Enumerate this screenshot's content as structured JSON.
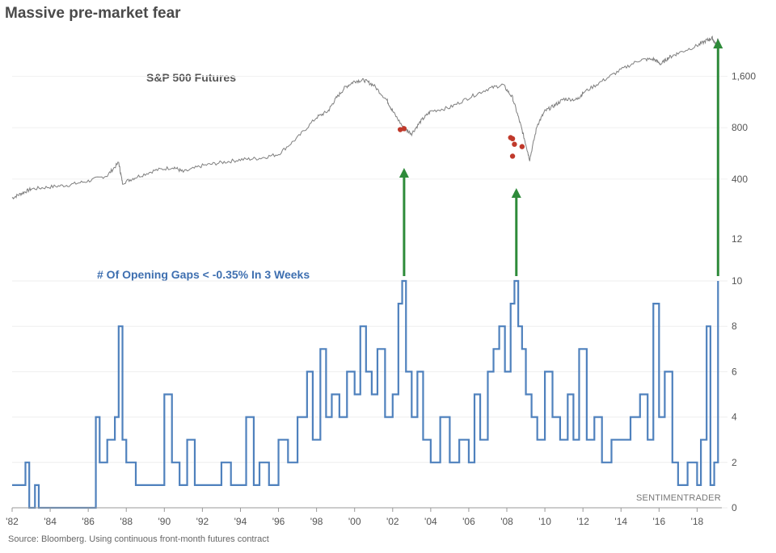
{
  "title": "Massive pre-market fear",
  "source": "Source:  Bloomberg.  Using continuous front-month futures contract",
  "watermark": "SENTIMENTRADER",
  "chart_data": [
    {
      "type": "line",
      "name": "S&P 500 Futures",
      "label": "S&P 500 Futures",
      "color": "#7f7f7f",
      "scale": "log",
      "yticks": [
        400,
        800,
        1600
      ],
      "ytick_labels": [
        "400",
        "800",
        "1,600"
      ],
      "x": [
        1982.0,
        1982.5,
        1983.0,
        1984.0,
        1985.0,
        1986.0,
        1987.0,
        1987.6,
        1987.8,
        1988.5,
        1989.5,
        1990.5,
        1991.0,
        1992.0,
        1993.0,
        1994.0,
        1995.0,
        1996.0,
        1997.0,
        1998.0,
        1998.6,
        1999.0,
        1999.5,
        2000.0,
        2000.5,
        2001.0,
        2001.7,
        2002.0,
        2002.6,
        2003.0,
        2003.5,
        2004.0,
        2005.0,
        2006.0,
        2007.0,
        2007.8,
        2008.3,
        2008.7,
        2009.0,
        2009.2,
        2009.6,
        2010.0,
        2010.5,
        2011.0,
        2011.7,
        2012.0,
        2013.0,
        2014.0,
        2015.0,
        2015.7,
        2016.1,
        2016.5,
        2017.0,
        2018.0,
        2018.5,
        2018.8,
        2019.0,
        2019.1
      ],
      "y": [
        310,
        330,
        350,
        360,
        370,
        390,
        420,
        500,
        380,
        410,
        450,
        470,
        440,
        480,
        500,
        520,
        530,
        560,
        700,
        920,
        1000,
        1180,
        1380,
        1500,
        1520,
        1420,
        1160,
        1000,
        790,
        740,
        880,
        1000,
        1050,
        1200,
        1350,
        1430,
        1200,
        850,
        640,
        520,
        830,
        1000,
        1080,
        1180,
        1170,
        1280,
        1500,
        1750,
        2000,
        2020,
        1890,
        2060,
        2190,
        2420,
        2600,
        2680,
        2440,
        2650
      ],
      "markers": [
        {
          "x": 2002.4,
          "y": 780
        },
        {
          "x": 2002.6,
          "y": 790
        },
        {
          "x": 2008.2,
          "y": 700
        },
        {
          "x": 2008.3,
          "y": 690
        },
        {
          "x": 2008.4,
          "y": 640
        },
        {
          "x": 2008.3,
          "y": 545
        },
        {
          "x": 2008.8,
          "y": 620
        }
      ],
      "arrows_x": [
        2002.6,
        2008.5,
        2019.1
      ]
    },
    {
      "type": "line",
      "name": "# Of Opening Gaps < -0.35% In 3 Weeks",
      "label": "# Of Opening Gaps < -0.35% In 3 Weeks",
      "color": "#4f81bd",
      "ylim": [
        0,
        12
      ],
      "yticks": [
        0,
        2,
        4,
        6,
        8,
        10,
        12
      ],
      "xlim": [
        1982,
        2019.3
      ],
      "xticks": [
        "'82",
        "'84",
        "'86",
        "'88",
        "'90",
        "'92",
        "'94",
        "'96",
        "'98",
        "'00",
        "'02",
        "'04",
        "'06",
        "'08",
        "'10",
        "'12",
        "'14",
        "'16",
        "'18"
      ],
      "x": [
        1982.0,
        1982.3,
        1982.7,
        1982.9,
        1983.2,
        1983.4,
        1984.5,
        1985.5,
        1986.4,
        1986.6,
        1987.0,
        1987.4,
        1987.6,
        1987.8,
        1988.0,
        1988.5,
        1989.0,
        1989.5,
        1990.0,
        1990.4,
        1990.8,
        1991.2,
        1991.6,
        1992.0,
        1992.5,
        1993.0,
        1993.5,
        1994.0,
        1994.3,
        1994.7,
        1995.0,
        1995.5,
        1996.0,
        1996.5,
        1997.0,
        1997.5,
        1997.8,
        1998.2,
        1998.5,
        1998.8,
        1999.2,
        1999.6,
        2000.0,
        2000.3,
        2000.6,
        2000.9,
        2001.2,
        2001.6,
        2002.0,
        2002.3,
        2002.5,
        2002.7,
        2003.0,
        2003.3,
        2003.6,
        2004.0,
        2004.5,
        2005.0,
        2005.5,
        2006.0,
        2006.3,
        2006.6,
        2007.0,
        2007.3,
        2007.6,
        2007.9,
        2008.2,
        2008.4,
        2008.6,
        2008.8,
        2009.0,
        2009.3,
        2009.6,
        2010.0,
        2010.4,
        2010.8,
        2011.2,
        2011.5,
        2011.8,
        2012.2,
        2012.6,
        2013.0,
        2013.5,
        2014.0,
        2014.5,
        2015.0,
        2015.4,
        2015.7,
        2016.0,
        2016.3,
        2016.7,
        2017.0,
        2017.5,
        2018.0,
        2018.2,
        2018.5,
        2018.7,
        2018.9,
        2019.1
      ],
      "y": [
        1,
        1,
        2,
        0,
        1,
        0,
        0,
        0,
        4,
        2,
        3,
        4,
        8,
        3,
        2,
        1,
        1,
        1,
        5,
        2,
        1,
        3,
        1,
        1,
        1,
        2,
        1,
        1,
        4,
        1,
        2,
        1,
        3,
        2,
        4,
        6,
        3,
        7,
        4,
        5,
        4,
        6,
        5,
        8,
        6,
        5,
        7,
        4,
        5,
        9,
        10,
        6,
        4,
        6,
        3,
        2,
        4,
        2,
        3,
        2,
        5,
        3,
        6,
        7,
        8,
        6,
        9,
        10,
        8,
        7,
        5,
        4,
        3,
        6,
        4,
        3,
        5,
        3,
        7,
        3,
        4,
        2,
        3,
        3,
        4,
        5,
        3,
        9,
        4,
        6,
        2,
        1,
        2,
        1,
        3,
        8,
        1,
        2,
        10
      ]
    }
  ]
}
